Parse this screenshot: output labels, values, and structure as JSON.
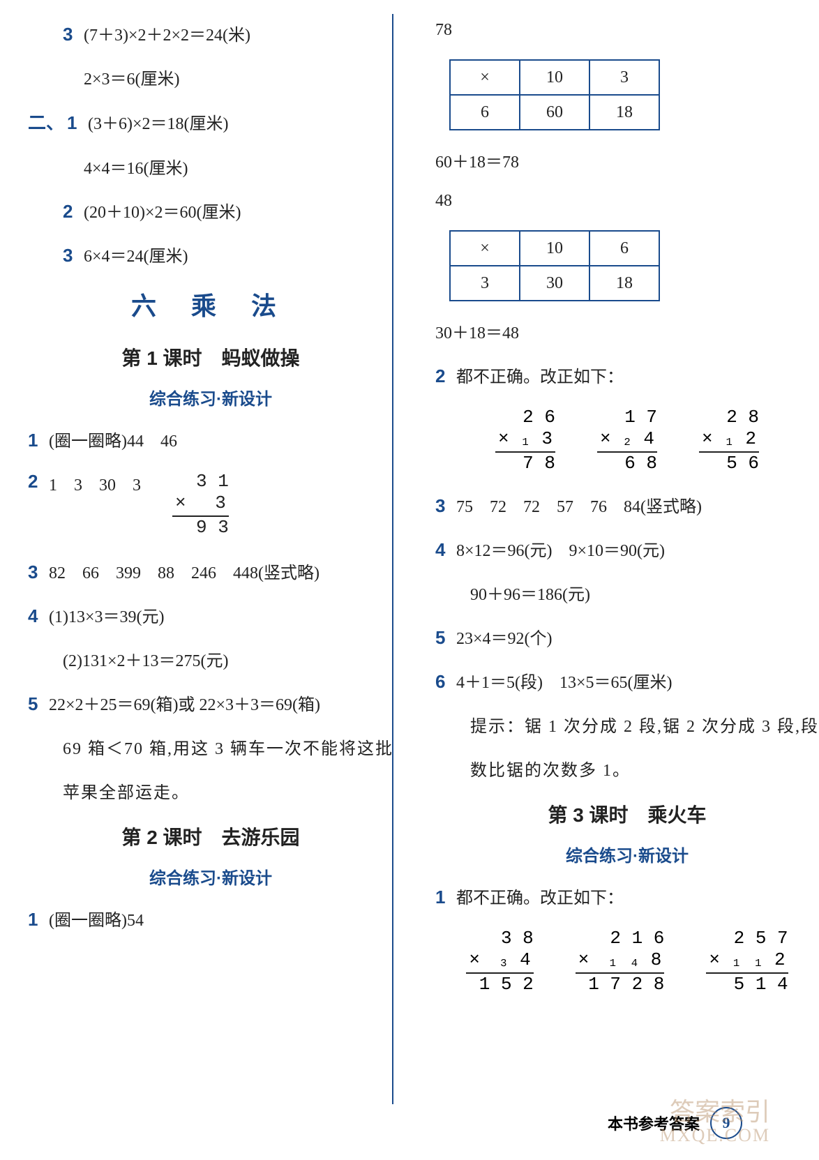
{
  "left": {
    "l1_num": "3",
    "l1": "(7＋3)×2＋2×2＝24(米)",
    "l2": "2×3＝6(厘米)",
    "l3_sec": "二、",
    "l3_num": "1",
    "l3": "(3＋6)×2＝18(厘米)",
    "l4": "4×4＝16(厘米)",
    "l5_num": "2",
    "l5": "(20＋10)×2＝60(厘米)",
    "l6_num": "3",
    "l6": "6×4＝24(厘米)",
    "chapter": "六 乘 法",
    "lesson1": "第 1 课时　蚂蚁做操",
    "sub1": "综合练习·新设计",
    "p1_num": "1",
    "p1": "(圈一圈略)44　46",
    "p2_num": "2",
    "p2": "1　3　30　3",
    "p2_calc": {
      "r1": "3 1",
      "r2": "×　 3",
      "r3": "9 3"
    },
    "p3_num": "3",
    "p3": "82　66　399　88　246　448(竖式略)",
    "p4_num": "4",
    "p4a": "(1)13×3＝39(元)",
    "p4b": "(2)131×2＋13＝275(元)",
    "p5_num": "5",
    "p5a": "22×2＋25＝69(箱)或 22×3＋3＝69(箱)",
    "p5b": "69 箱＜70 箱,用这 3 辆车一次不能将这批",
    "p5c": "苹果全部运走。",
    "lesson2": "第 2 课时　去游乐园",
    "sub2": "综合练习·新设计",
    "q1_num": "1",
    "q1": "(圈一圈略)54"
  },
  "right": {
    "r1": "78",
    "table1": {
      "h1": "×",
      "h2": "10",
      "h3": "3",
      "c1": "6",
      "c2": "60",
      "c3": "18"
    },
    "r2": "60＋18＝78",
    "r3": "48",
    "table2": {
      "h1": "×",
      "h2": "10",
      "h3": "6",
      "c1": "3",
      "c2": "30",
      "c3": "18"
    },
    "r4": "30＋18＝48",
    "s2_num": "2",
    "s2": "都不正确。改正如下：",
    "calc1": {
      "r1": "2 6",
      "r2": "× ₁ 3",
      "r3": "7 8"
    },
    "calc2": {
      "r1": "1 7",
      "r2": "× ₂ 4",
      "r3": "6 8"
    },
    "calc3": {
      "r1": "2 8",
      "r2": "× ₁ 2",
      "r3": "5 6"
    },
    "s3_num": "3",
    "s3": "75　72　72　57　76　84(竖式略)",
    "s4_num": "4",
    "s4a": "8×12＝96(元)　9×10＝90(元)",
    "s4b": "90＋96＝186(元)",
    "s5_num": "5",
    "s5": "23×4＝92(个)",
    "s6_num": "6",
    "s6a": "4＋1＝5(段)　13×5＝65(厘米)",
    "s6b": "提示：锯 1 次分成 2 段,锯 2 次分成 3 段,段",
    "s6c": "数比锯的次数多 1。",
    "lesson3": "第 3 课时　乘火车",
    "sub3": "综合练习·新设计",
    "t1_num": "1",
    "t1": "都不正确。改正如下：",
    "bcalc1": {
      "r1": "3 8",
      "r2": "×　₃ 4",
      "r3": "1 5 2"
    },
    "bcalc2": {
      "r1": "2 1 6",
      "r2": "×　₁ ₄ 8",
      "r3": "1 7 2 8"
    },
    "bcalc3": {
      "r1": "2 5 7",
      "r2": "× ₁ ₁ 2",
      "r3": "5 1 4"
    }
  },
  "footer": {
    "label": "本书参考答案",
    "page": "9"
  },
  "watermark": {
    "l1": "答案索引",
    "l2": "MXQE.COM"
  },
  "colors": {
    "blue": "#1a4b8c",
    "text": "#222222",
    "bg": "#ffffff"
  }
}
